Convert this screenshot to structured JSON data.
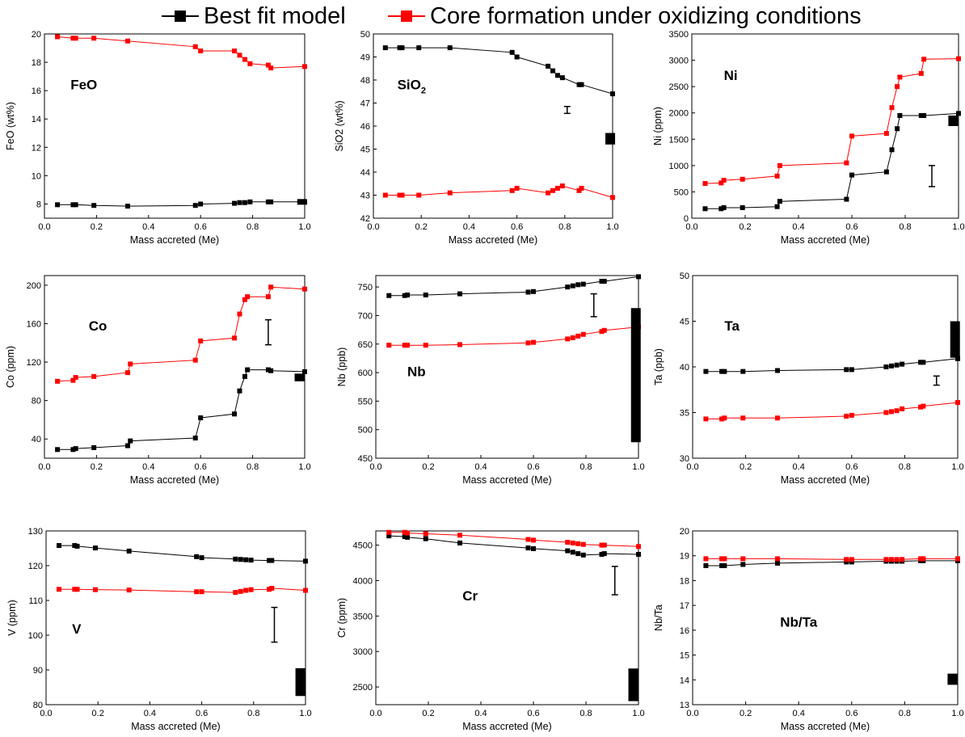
{
  "legend": [
    {
      "label": "Best fit model",
      "color": "#000000"
    },
    {
      "label": "Core formation under oxidizing conditions",
      "color": "#ff0000"
    }
  ],
  "chart_data": [
    {
      "type": "line",
      "panel_label": "FeO",
      "xlabel": "Mass accreted (Me)",
      "ylabel": "FeO (wt%)",
      "xlim": [
        0.0,
        1.0
      ],
      "ylim": [
        7,
        20
      ],
      "xticks": [
        0.0,
        0.2,
        0.4,
        0.6,
        0.8,
        1.0
      ],
      "xtick_labels": [
        "0.0",
        "0.2",
        "0.4",
        "0.6",
        "0.8",
        "1.0"
      ],
      "yticks": [
        8,
        10,
        12,
        14,
        16,
        18,
        20
      ],
      "ytick_labels": [
        "8",
        "10",
        "12",
        "14",
        "16",
        "18",
        "20"
      ],
      "series": [
        {
          "color": "#000000",
          "x": [
            0.05,
            0.11,
            0.12,
            0.19,
            0.32,
            0.58,
            0.6,
            0.73,
            0.75,
            0.77,
            0.79,
            0.86,
            0.87,
            1.0
          ],
          "y": [
            7.95,
            7.95,
            7.95,
            7.9,
            7.85,
            7.9,
            8.0,
            8.05,
            8.1,
            8.1,
            8.15,
            8.15,
            8.15,
            8.15
          ]
        },
        {
          "color": "#ff0000",
          "x": [
            0.05,
            0.11,
            0.12,
            0.19,
            0.32,
            0.58,
            0.6,
            0.73,
            0.75,
            0.77,
            0.79,
            0.86,
            0.87,
            1.0
          ],
          "y": [
            19.8,
            19.7,
            19.7,
            19.7,
            19.5,
            19.1,
            18.8,
            18.8,
            18.5,
            18.2,
            17.9,
            17.8,
            17.6,
            17.7
          ]
        }
      ],
      "error_bar": null,
      "range_box": {
        "x": 0.99,
        "ymin": 7.95,
        "ymax": 8.35
      }
    },
    {
      "type": "line",
      "panel_label": "SiO",
      "panel_label_sub": "2",
      "xlabel": "Mass accreted (Me)",
      "ylabel": "SiO2 (wt%)",
      "xlim": [
        0.0,
        1.0
      ],
      "ylim": [
        42,
        50
      ],
      "xticks": [
        0.0,
        0.2,
        0.4,
        0.6,
        0.8,
        1.0
      ],
      "xtick_labels": [
        "0.0",
        "0.2",
        "0.4",
        "0.6",
        "0.8",
        "1.0"
      ],
      "yticks": [
        42,
        43,
        44,
        45,
        46,
        47,
        48,
        49,
        50
      ],
      "ytick_labels": [
        "42",
        "43",
        "44",
        "45",
        "46",
        "47",
        "48",
        "49",
        "50"
      ],
      "series": [
        {
          "color": "#000000",
          "x": [
            0.05,
            0.11,
            0.12,
            0.19,
            0.32,
            0.58,
            0.6,
            0.73,
            0.75,
            0.77,
            0.79,
            0.86,
            0.87,
            1.0
          ],
          "y": [
            49.4,
            49.4,
            49.4,
            49.4,
            49.4,
            49.2,
            49.0,
            48.6,
            48.4,
            48.2,
            48.1,
            47.8,
            47.8,
            47.4
          ]
        },
        {
          "color": "#ff0000",
          "x": [
            0.05,
            0.11,
            0.12,
            0.19,
            0.32,
            0.58,
            0.6,
            0.73,
            0.75,
            0.77,
            0.79,
            0.86,
            0.87,
            1.0
          ],
          "y": [
            43.0,
            43.0,
            43.0,
            43.0,
            43.1,
            43.2,
            43.3,
            43.1,
            43.2,
            43.3,
            43.4,
            43.2,
            43.3,
            42.9
          ]
        }
      ],
      "error_bar": {
        "x": 0.81,
        "ymin": 46.55,
        "ymax": 46.85
      },
      "range_box": {
        "x": 0.99,
        "ymin": 45.2,
        "ymax": 45.7
      }
    },
    {
      "type": "line",
      "panel_label": "Ni",
      "xlabel": "Mass accreted (Me)",
      "ylabel": "Ni (ppm)",
      "xlim": [
        0.0,
        1.0
      ],
      "ylim": [
        0,
        3500
      ],
      "xticks": [
        0.0,
        0.2,
        0.4,
        0.6,
        0.8,
        1.0
      ],
      "xtick_labels": [
        "0.0",
        "0.2",
        "0.4",
        "0.6",
        "0.8",
        "1.0"
      ],
      "yticks": [
        0,
        500,
        1000,
        1500,
        2000,
        2500,
        3000,
        3500
      ],
      "ytick_labels": [
        "0",
        "500",
        "1000",
        "1500",
        "2000",
        "2500",
        "3000",
        "3500"
      ],
      "series": [
        {
          "color": "#000000",
          "x": [
            0.05,
            0.11,
            0.12,
            0.19,
            0.32,
            0.33,
            0.58,
            0.6,
            0.73,
            0.75,
            0.77,
            0.78,
            0.86,
            0.87,
            1.0
          ],
          "y": [
            180,
            180,
            200,
            200,
            220,
            320,
            360,
            820,
            880,
            1300,
            1700,
            1950,
            1950,
            1950,
            1990
          ]
        },
        {
          "color": "#ff0000",
          "x": [
            0.05,
            0.11,
            0.12,
            0.19,
            0.32,
            0.33,
            0.58,
            0.6,
            0.73,
            0.75,
            0.77,
            0.78,
            0.86,
            0.87,
            1.0
          ],
          "y": [
            660,
            670,
            720,
            740,
            800,
            1000,
            1050,
            1560,
            1610,
            2100,
            2500,
            2680,
            2750,
            3020,
            3030
          ]
        }
      ],
      "error_bar": {
        "x": 0.9,
        "ymin": 600,
        "ymax": 1000
      },
      "range_box": {
        "x": 0.98,
        "ymin": 1750,
        "ymax": 1950
      }
    },
    {
      "type": "line",
      "panel_label": "Co",
      "xlabel": "Mass accreted (Me)",
      "ylabel": "Co (ppm)",
      "xlim": [
        0.0,
        1.0
      ],
      "ylim": [
        20,
        210
      ],
      "xticks": [
        0.0,
        0.2,
        0.4,
        0.6,
        0.8,
        1.0
      ],
      "xtick_labels": [
        "0.0",
        "0.2",
        "0.4",
        "0.6",
        "0.8",
        "1.0"
      ],
      "yticks": [
        40,
        80,
        120,
        160,
        200
      ],
      "ytick_labels": [
        "40",
        "80",
        "120",
        "160",
        "200"
      ],
      "series": [
        {
          "color": "#000000",
          "x": [
            0.05,
            0.11,
            0.12,
            0.19,
            0.32,
            0.33,
            0.58,
            0.6,
            0.73,
            0.75,
            0.77,
            0.78,
            0.86,
            0.87,
            1.0
          ],
          "y": [
            29,
            29,
            30,
            31,
            33,
            38,
            41,
            62,
            66,
            90,
            105,
            112,
            112,
            111,
            110
          ]
        },
        {
          "color": "#ff0000",
          "x": [
            0.05,
            0.11,
            0.12,
            0.19,
            0.32,
            0.33,
            0.58,
            0.6,
            0.73,
            0.75,
            0.77,
            0.78,
            0.86,
            0.87,
            1.0
          ],
          "y": [
            100,
            101,
            104,
            105,
            109,
            118,
            122,
            142,
            145,
            170,
            185,
            188,
            188,
            198,
            196
          ]
        }
      ],
      "error_bar": {
        "x": 0.86,
        "ymin": 138,
        "ymax": 164
      },
      "range_box": {
        "x": 0.98,
        "ymin": 100,
        "ymax": 108
      }
    },
    {
      "type": "line",
      "panel_label": "Nb",
      "xlabel": "Mass accreted (Me)",
      "ylabel": "Nb (ppb)",
      "xlim": [
        0.0,
        1.0
      ],
      "ylim": [
        450,
        770
      ],
      "xticks": [
        0.0,
        0.2,
        0.4,
        0.6,
        0.8,
        1.0
      ],
      "xtick_labels": [
        "0.0",
        "0.2",
        "0.4",
        "0.6",
        "0.8",
        "1.0"
      ],
      "yticks": [
        450,
        500,
        550,
        600,
        650,
        700,
        750
      ],
      "ytick_labels": [
        "450",
        "500",
        "550",
        "600",
        "650",
        "700",
        "750"
      ],
      "series": [
        {
          "color": "#000000",
          "x": [
            0.05,
            0.11,
            0.12,
            0.19,
            0.32,
            0.58,
            0.6,
            0.73,
            0.75,
            0.77,
            0.79,
            0.86,
            0.87,
            1.0
          ],
          "y": [
            735,
            735,
            736,
            736,
            738,
            741,
            742,
            750,
            752,
            754,
            755,
            760,
            760,
            768
          ]
        },
        {
          "color": "#ff0000",
          "x": [
            0.05,
            0.11,
            0.12,
            0.19,
            0.32,
            0.58,
            0.6,
            0.73,
            0.75,
            0.77,
            0.79,
            0.86,
            0.87,
            1.0
          ],
          "y": [
            648,
            648,
            648,
            648,
            649,
            652,
            653,
            659,
            661,
            664,
            667,
            672,
            674,
            680
          ]
        }
      ],
      "error_bar": {
        "x": 0.83,
        "ymin": 698,
        "ymax": 738
      },
      "range_box": {
        "x": 0.99,
        "ymin": 478,
        "ymax": 713
      }
    },
    {
      "type": "line",
      "panel_label": "Ta",
      "xlabel": "Mass accreted (Me)",
      "ylabel": "Ta (ppb)",
      "xlim": [
        0.0,
        1.0
      ],
      "ylim": [
        30,
        50
      ],
      "xticks": [
        0.0,
        0.2,
        0.4,
        0.6,
        0.8,
        1.0
      ],
      "xtick_labels": [
        "0.0",
        "0.2",
        "0.4",
        "0.6",
        "0.8",
        "1.0"
      ],
      "yticks": [
        30,
        35,
        40,
        45,
        50
      ],
      "ytick_labels": [
        "30",
        "35",
        "40",
        "45",
        "50"
      ],
      "series": [
        {
          "color": "#000000",
          "x": [
            0.05,
            0.11,
            0.12,
            0.19,
            0.32,
            0.58,
            0.6,
            0.73,
            0.75,
            0.77,
            0.79,
            0.86,
            0.87,
            1.0
          ],
          "y": [
            39.5,
            39.5,
            39.5,
            39.5,
            39.6,
            39.7,
            39.7,
            40.0,
            40.1,
            40.2,
            40.3,
            40.5,
            40.5,
            40.9
          ]
        },
        {
          "color": "#ff0000",
          "x": [
            0.05,
            0.11,
            0.12,
            0.19,
            0.32,
            0.58,
            0.6,
            0.73,
            0.75,
            0.77,
            0.79,
            0.86,
            0.87,
            1.0
          ],
          "y": [
            34.3,
            34.3,
            34.4,
            34.4,
            34.4,
            34.6,
            34.7,
            35.0,
            35.1,
            35.2,
            35.4,
            35.6,
            35.7,
            36.1
          ]
        }
      ],
      "error_bar": {
        "x": 0.92,
        "ymin": 38.0,
        "ymax": 39.0
      },
      "range_box": {
        "x": 0.99,
        "ymin": 41.0,
        "ymax": 45.0
      }
    },
    {
      "type": "line",
      "panel_label": "V",
      "xlabel": "Mass accreted (Me)",
      "ylabel": "V (ppm)",
      "xlim": [
        0.0,
        1.0
      ],
      "ylim": [
        80,
        130
      ],
      "xticks": [
        0.0,
        0.2,
        0.4,
        0.6,
        0.8,
        1.0
      ],
      "xtick_labels": [
        "0.0",
        "0.2",
        "0.4",
        "0.6",
        "0.8",
        "1.0"
      ],
      "yticks": [
        80,
        90,
        100,
        110,
        120,
        130
      ],
      "ytick_labels": [
        "80",
        "90",
        "100",
        "110",
        "120",
        "130"
      ],
      "series": [
        {
          "color": "#000000",
          "x": [
            0.05,
            0.11,
            0.12,
            0.19,
            0.32,
            0.58,
            0.6,
            0.73,
            0.75,
            0.77,
            0.79,
            0.86,
            0.87,
            1.0
          ],
          "y": [
            125.8,
            125.8,
            125.6,
            125.1,
            124.2,
            122.6,
            122.3,
            121.9,
            121.8,
            121.7,
            121.6,
            121.5,
            121.5,
            121.3
          ]
        },
        {
          "color": "#ff0000",
          "x": [
            0.05,
            0.11,
            0.12,
            0.19,
            0.32,
            0.58,
            0.6,
            0.73,
            0.75,
            0.77,
            0.79,
            0.86,
            0.87,
            1.0
          ],
          "y": [
            113.2,
            113.2,
            113.2,
            113.1,
            113.0,
            112.5,
            112.5,
            112.3,
            112.6,
            112.9,
            113.1,
            113.2,
            113.5,
            112.9
          ]
        }
      ],
      "error_bar": {
        "x": 0.88,
        "ymin": 98,
        "ymax": 108
      },
      "range_box": {
        "x": 0.98,
        "ymin": 82.5,
        "ymax": 90.5
      }
    },
    {
      "type": "line",
      "panel_label": "Cr",
      "xlabel": "Mass accreted (Me)",
      "ylabel": "Cr (ppm)",
      "xlim": [
        0.0,
        1.0
      ],
      "ylim": [
        2250,
        4700
      ],
      "xticks": [
        0.0,
        0.2,
        0.4,
        0.6,
        0.8,
        1.0
      ],
      "xtick_labels": [
        "0.0",
        "0.2",
        "0.4",
        "0.6",
        "0.8",
        "1.0"
      ],
      "yticks": [
        2500,
        3000,
        3500,
        4000,
        4500
      ],
      "ytick_labels": [
        "2500",
        "3000",
        "3500",
        "4000",
        "4500"
      ],
      "series": [
        {
          "color": "#000000",
          "x": [
            0.05,
            0.11,
            0.12,
            0.19,
            0.32,
            0.58,
            0.6,
            0.73,
            0.75,
            0.77,
            0.79,
            0.86,
            0.87,
            1.0
          ],
          "y": [
            4630,
            4620,
            4610,
            4590,
            4530,
            4460,
            4450,
            4420,
            4400,
            4380,
            4360,
            4370,
            4380,
            4370
          ]
        },
        {
          "color": "#ff0000",
          "x": [
            0.05,
            0.11,
            0.12,
            0.19,
            0.32,
            0.58,
            0.6,
            0.73,
            0.75,
            0.77,
            0.79,
            0.86,
            0.87,
            1.0
          ],
          "y": [
            4680,
            4680,
            4670,
            4660,
            4640,
            4580,
            4570,
            4540,
            4530,
            4520,
            4510,
            4500,
            4500,
            4480
          ]
        }
      ],
      "error_bar": {
        "x": 0.91,
        "ymin": 3800,
        "ymax": 4200
      },
      "range_box": {
        "x": 0.98,
        "ymin": 2300,
        "ymax": 2760
      }
    },
    {
      "type": "line",
      "panel_label": "Nb/Ta",
      "xlabel": "Mass accreted (Me)",
      "ylabel": "Nb/Ta",
      "xlim": [
        0.0,
        1.0
      ],
      "ylim": [
        13,
        20
      ],
      "xticks": [
        0.0,
        0.2,
        0.4,
        0.6,
        0.8,
        1.0
      ],
      "xtick_labels": [
        "0.0",
        "0.2",
        "0.4",
        "0.6",
        "0.8",
        "1.0"
      ],
      "yticks": [
        13,
        14,
        15,
        16,
        17,
        18,
        19,
        20
      ],
      "ytick_labels": [
        "13",
        "14",
        "15",
        "16",
        "17",
        "18",
        "19",
        "20"
      ],
      "series": [
        {
          "color": "#000000",
          "x": [
            0.05,
            0.11,
            0.12,
            0.19,
            0.32,
            0.58,
            0.6,
            0.73,
            0.75,
            0.77,
            0.79,
            0.86,
            0.87,
            1.0
          ],
          "y": [
            18.6,
            18.6,
            18.6,
            18.65,
            18.7,
            18.75,
            18.75,
            18.78,
            18.78,
            18.78,
            18.78,
            18.8,
            18.8,
            18.8
          ]
        },
        {
          "color": "#ff0000",
          "x": [
            0.05,
            0.11,
            0.12,
            0.19,
            0.32,
            0.58,
            0.6,
            0.73,
            0.75,
            0.77,
            0.79,
            0.86,
            0.87,
            1.0
          ],
          "y": [
            18.88,
            18.88,
            18.88,
            18.88,
            18.88,
            18.85,
            18.85,
            18.85,
            18.85,
            18.85,
            18.85,
            18.88,
            18.88,
            18.88
          ]
        }
      ],
      "error_bar": null,
      "range_box": {
        "x": 0.98,
        "ymin": 13.8,
        "ymax": 14.25
      }
    }
  ]
}
